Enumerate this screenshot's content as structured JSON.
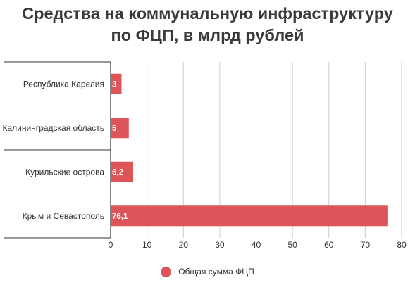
{
  "title_line1": "Средства на коммунальную инфраструктуру",
  "title_line2": "по ФЦП, в млрд рублей",
  "colors": {
    "bar": "#de5559",
    "grid": "#cccccc",
    "axis": "#333333",
    "text": "#333333"
  },
  "chart_data": {
    "type": "bar",
    "orientation": "horizontal",
    "title": "Средства на коммунальную инфраструктуру по ФЦП, в млрд рублей",
    "categories": [
      "Республика Карелия",
      "Калининградская область",
      "Курильские острова",
      "Крым и Севастополь"
    ],
    "series": [
      {
        "name": "Общая сумма ФЦП",
        "values": [
          3,
          5,
          6.2,
          76.1
        ],
        "labels": [
          "3",
          "5",
          "6,2",
          "76,1"
        ]
      }
    ],
    "xlim": [
      0,
      80
    ],
    "xticks": [
      0,
      10,
      20,
      30,
      40,
      50,
      60,
      70,
      80
    ],
    "grid": true,
    "legend_position": "bottom"
  }
}
